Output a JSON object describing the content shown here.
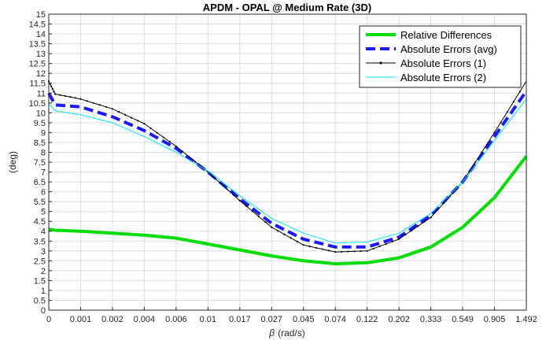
{
  "chart_data": {
    "type": "line",
    "title": "APDM - OPAL @ Medium Rate (3D)",
    "xlabel_symbol": "β",
    "xlabel_unit": "(rad/s)",
    "ylabel": "(deg)",
    "ylim": [
      0,
      15
    ],
    "ytick_step": 0.5,
    "grid": true,
    "legend_position": "top-right",
    "xticks": [
      "0",
      "0.001",
      "0.002",
      "0.004",
      "0.006",
      "0.01",
      "0.017",
      "0.027",
      "0.045",
      "0.074",
      "0.122",
      "0.202",
      "0.333",
      "0.549",
      "0.905",
      "1.492"
    ],
    "series": [
      {
        "name": "Relative Differences",
        "color": "#00dd00",
        "style": "solid-thick",
        "x": [
          0,
          0.2,
          1,
          2,
          3,
          4,
          5,
          6,
          7,
          8,
          9,
          10,
          11,
          12,
          13,
          14,
          15
        ],
        "y": [
          4.1,
          4.05,
          4.0,
          3.9,
          3.8,
          3.65,
          3.35,
          3.05,
          2.75,
          2.5,
          2.35,
          2.4,
          2.65,
          3.2,
          4.2,
          5.7,
          7.8
        ]
      },
      {
        "name": "Absolute Errors (avg)",
        "color": "#1a1aff",
        "style": "dashed-thick",
        "x": [
          0,
          0.2,
          1,
          2,
          3,
          4,
          5,
          6,
          7,
          8,
          9,
          10,
          11,
          12,
          13,
          14,
          15
        ],
        "y": [
          11.0,
          10.4,
          10.3,
          9.8,
          9.1,
          8.2,
          7.0,
          5.65,
          4.4,
          3.6,
          3.2,
          3.2,
          3.7,
          4.8,
          6.5,
          8.8,
          11.1
        ]
      },
      {
        "name": "Absolute Errors (1)",
        "color": "#000000",
        "style": "dotted-marker",
        "x": [
          0,
          0.2,
          1,
          2,
          3,
          4,
          5,
          6,
          7,
          8,
          9,
          10,
          11,
          12,
          13,
          14,
          15
        ],
        "y": [
          11.6,
          10.95,
          10.7,
          10.2,
          9.45,
          8.3,
          7.0,
          5.55,
          4.2,
          3.3,
          2.95,
          3.0,
          3.6,
          4.7,
          6.5,
          9.0,
          11.6
        ]
      },
      {
        "name": "Absolute Errors (2)",
        "color": "#00e5ff",
        "style": "thin",
        "x": [
          0,
          0.2,
          1,
          2,
          3,
          4,
          5,
          6,
          7,
          8,
          9,
          10,
          11,
          12,
          13,
          14,
          15
        ],
        "y": [
          10.5,
          10.1,
          9.9,
          9.5,
          8.8,
          8.0,
          7.05,
          5.8,
          4.65,
          3.9,
          3.4,
          3.45,
          3.9,
          4.9,
          6.5,
          8.6,
          10.7
        ]
      }
    ]
  }
}
